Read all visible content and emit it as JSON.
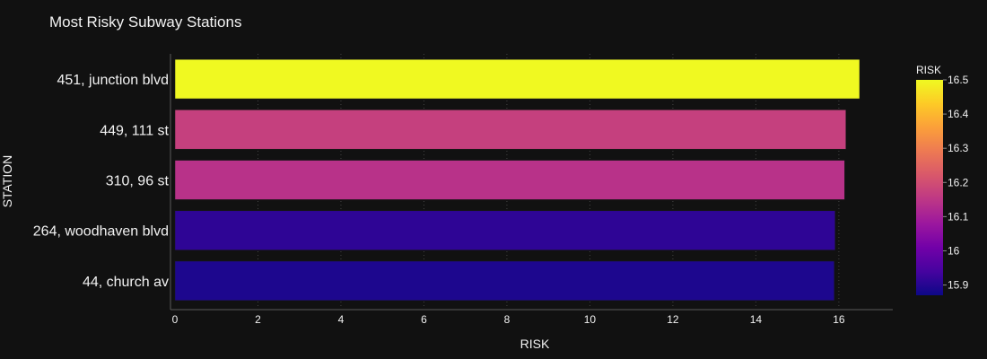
{
  "chart_data": {
    "type": "bar",
    "orientation": "horizontal",
    "title": "Most Risky Subway Stations",
    "xlabel": "RISK",
    "ylabel": "STATION",
    "categories": [
      "44, church av",
      "264, woodhaven blvd",
      "310, 96 st",
      "449, 111 st",
      "451, junction blvd"
    ],
    "values": [
      15.89,
      15.91,
      16.14,
      16.17,
      16.5
    ],
    "xlim": [
      0,
      17.3
    ],
    "xticks": [
      0,
      2,
      4,
      6,
      8,
      10,
      12,
      14,
      16
    ],
    "grid": true,
    "colorbar": {
      "title": "RISK",
      "range": [
        15.87,
        16.5
      ],
      "ticks": [
        15.9,
        16,
        16.1,
        16.2,
        16.3,
        16.4,
        16.5
      ],
      "tick_labels": [
        "15.9",
        "16",
        "16.1",
        "16.2",
        "16.3",
        "16.4",
        "16.5"
      ],
      "colorscale": [
        "#0d0887",
        "#46039f",
        "#7201a8",
        "#9c179e",
        "#bd3786",
        "#d8576b",
        "#ed7953",
        "#fb9f3a",
        "#fdca26",
        "#f0f921"
      ]
    }
  },
  "colors": {
    "background": "#111111",
    "text": "#f2f2f2",
    "axis_line": "#5a5a5a",
    "grid": "#444444"
  }
}
